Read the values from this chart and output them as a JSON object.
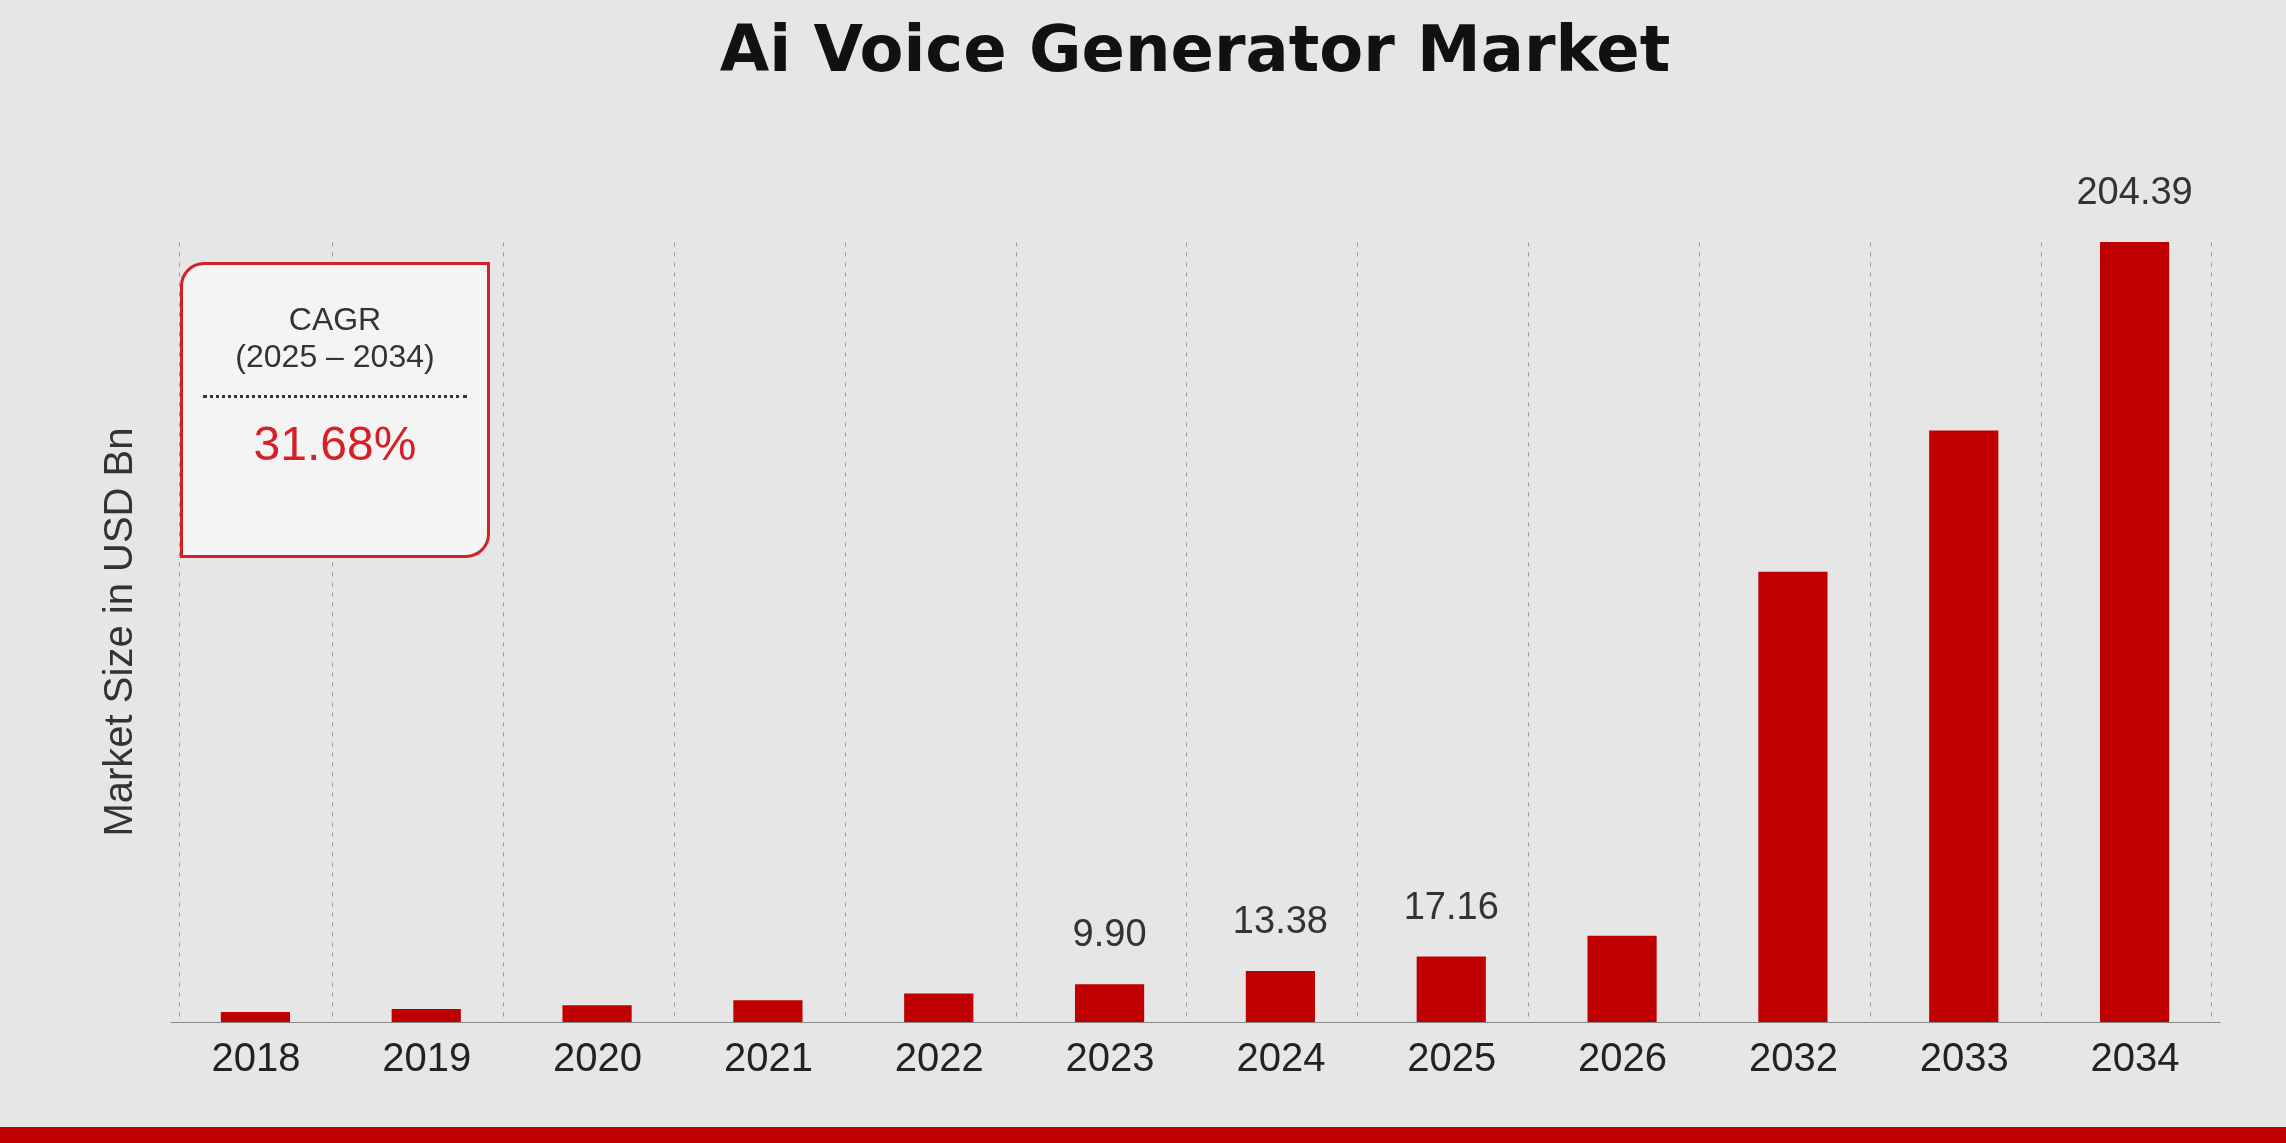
{
  "chart_data": {
    "type": "bar",
    "title": "Ai Voice Generator Market",
    "ylabel": "Market Size in USD Bn",
    "categories": [
      "2018",
      "2019",
      "2020",
      "2021",
      "2022",
      "2023",
      "2024",
      "2025",
      "2026",
      "2032",
      "2033",
      "2034"
    ],
    "values": [
      2.6,
      3.4,
      4.4,
      5.7,
      7.5,
      9.9,
      13.38,
      17.16,
      22.6,
      118,
      155,
      204.39
    ],
    "value_labels": [
      null,
      null,
      null,
      null,
      null,
      "9.90",
      "13.38",
      "17.16",
      null,
      null,
      null,
      "204.39"
    ],
    "color": "#c00000",
    "grid": "x",
    "annotations": [
      "CAGR",
      "(2025 – 2034)",
      "31.68%"
    ]
  }
}
